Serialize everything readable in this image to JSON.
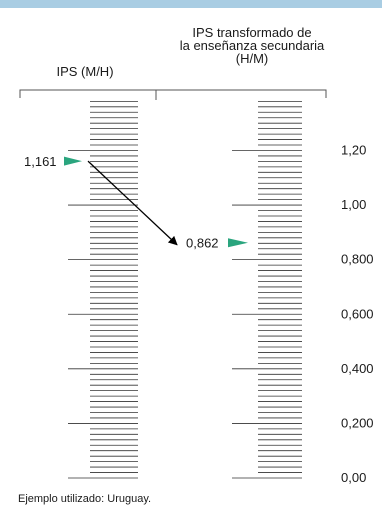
{
  "headers": {
    "left": "IPS (M/H)",
    "right_lines": [
      "IPS transformado de",
      "la enseñanza secundaria",
      "(H/M)"
    ]
  },
  "example": {
    "left_value": 1.161,
    "left_label": "1,161",
    "right_value": 0.862,
    "right_label": "0,862"
  },
  "axis": {
    "min": 0,
    "max": 1.2,
    "major_ticks": [
      {
        "value": 1.2,
        "label": "1,20"
      },
      {
        "value": 1.0,
        "label": "1,00"
      },
      {
        "value": 0.8,
        "label": "0,800"
      },
      {
        "value": 0.6,
        "label": "0,600"
      },
      {
        "value": 0.4,
        "label": "0,400"
      },
      {
        "value": 0.2,
        "label": "0,200"
      },
      {
        "value": 0.0,
        "label": "0,00"
      }
    ]
  },
  "colors": {
    "top_bar": "#a9cde3",
    "marker": "#2aa57e",
    "lines": "#333333",
    "arrow": "#000000"
  },
  "footnote": "Ejemplo utilizado: Uruguay."
}
